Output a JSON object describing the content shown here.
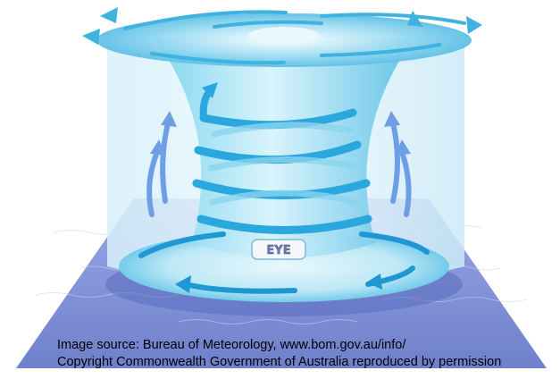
{
  "diagram": {
    "eye_label": "EYE"
  },
  "credits": {
    "line1": "Image source: Bureau of Meteorology, www.bom.gov.au/info/",
    "line2": "Copyright Commonwealth Government of Australia reproduced by permission"
  },
  "colors": {
    "ocean": "#7f90d6",
    "funnel": "#66c8e8",
    "wall": "#bfe6f6",
    "spiral": "#2aa7dc",
    "updraft": "#6f9ee6",
    "eye_badge": "#f4f8fb"
  }
}
